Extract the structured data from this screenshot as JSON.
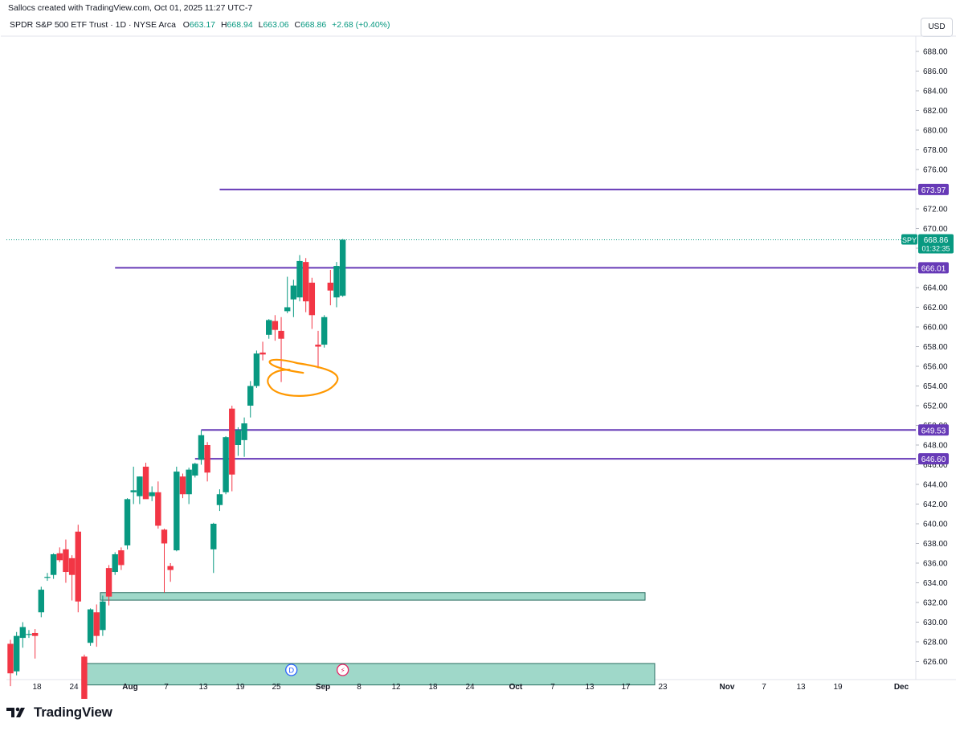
{
  "header": {
    "caption": "Sallocs created with TradingView.com, Oct 01, 2025 11:27 UTC-7",
    "symbol_title": "SPDR S&P 500 ETF Trust · 1D · NYSE Arca",
    "ohlc": [
      {
        "key": "O",
        "value": "663.17"
      },
      {
        "key": "H",
        "value": "668.94"
      },
      {
        "key": "L",
        "value": "663.06"
      },
      {
        "key": "C",
        "value": "668.86"
      }
    ],
    "change": "+2.68 (+0.40%)",
    "currency": "USD"
  },
  "footer": {
    "brand": "TradingView"
  },
  "chart_data": {
    "type": "candlestick",
    "ylim": [
      624.5,
      690.5
    ],
    "y_ticks": [
      "626.00",
      "628.00",
      "630.00",
      "632.00",
      "634.00",
      "636.00",
      "638.00",
      "640.00",
      "642.00",
      "644.00",
      "646.00",
      "648.00",
      "650.00",
      "652.00",
      "654.00",
      "656.00",
      "658.00",
      "660.00",
      "662.00",
      "664.00",
      "666.00",
      "668.00",
      "670.00",
      "672.00",
      "674.00",
      "676.00",
      "678.00",
      "680.00",
      "682.00",
      "684.00",
      "686.00",
      "688.00"
    ],
    "x_ticks": [
      "18",
      "24",
      "Aug",
      "7",
      "13",
      "19",
      "25",
      "Sep",
      "8",
      "12",
      "18",
      "24",
      "Oct",
      "7",
      "13",
      "17",
      "23",
      "Nov",
      "7",
      "13",
      "19",
      "Dec"
    ],
    "bold_x_ticks": [
      "Aug",
      "Sep",
      "Oct",
      "Nov",
      "Dec"
    ],
    "colors": {
      "up": "#089981",
      "down": "#f23645",
      "level": "#673ab7",
      "zone_fill": "#9fd8c9",
      "zone_stroke": "#2a6e62",
      "drawing": "#ff9800",
      "last_price": "#089981"
    },
    "candles": [
      {
        "date": "Jul 14",
        "o": 627.8,
        "h": 628.2,
        "l": 623.5,
        "c": 624.8
      },
      {
        "date": "Jul 15",
        "o": 625.0,
        "h": 629.0,
        "l": 624.6,
        "c": 628.6
      },
      {
        "date": "Jul 16",
        "o": 628.4,
        "h": 630.0,
        "l": 627.4,
        "c": 629.5
      },
      {
        "date": "Jul 17",
        "o": 628.8,
        "h": 629.2,
        "l": 628.4,
        "c": 628.8
      },
      {
        "date": "Jul 18",
        "o": 628.9,
        "h": 629.3,
        "l": 626.3,
        "c": 628.6
      },
      {
        "date": "Jul 21",
        "o": 631.0,
        "h": 633.6,
        "l": 630.5,
        "c": 633.3
      },
      {
        "date": "Jul 22",
        "o": 634.6,
        "h": 635.0,
        "l": 634.2,
        "c": 634.6
      },
      {
        "date": "Jul 23",
        "o": 634.8,
        "h": 637.0,
        "l": 634.4,
        "c": 636.9
      },
      {
        "date": "Jul 24",
        "o": 637.0,
        "h": 637.6,
        "l": 636.1,
        "c": 636.3
      },
      {
        "date": "Jul 25",
        "o": 637.4,
        "h": 638.4,
        "l": 634.0,
        "c": 635.1
      },
      {
        "date": "Jul 28",
        "o": 636.5,
        "h": 636.8,
        "l": 632.2,
        "c": 634.8
      },
      {
        "date": "Jul 29",
        "o": 639.2,
        "h": 639.9,
        "l": 631.0,
        "c": 632.1
      },
      {
        "date": "Aug 1",
        "o": 626.5,
        "h": 626.7,
        "l": 621.5,
        "c": 621.8
      },
      {
        "date": "Aug 4",
        "o": 627.9,
        "h": 631.4,
        "l": 627.6,
        "c": 631.3
      },
      {
        "date": "Aug 5",
        "o": 631.0,
        "h": 631.8,
        "l": 627.5,
        "c": 628.6
      },
      {
        "date": "Aug 6",
        "o": 629.2,
        "h": 632.7,
        "l": 628.6,
        "c": 632.1
      },
      {
        "date": "Aug 7",
        "o": 635.5,
        "h": 635.8,
        "l": 631.7,
        "c": 632.6
      },
      {
        "date": "Aug 8",
        "o": 635.1,
        "h": 637.1,
        "l": 634.8,
        "c": 636.9
      },
      {
        "date": "Aug 11",
        "o": 637.3,
        "h": 637.6,
        "l": 635.3,
        "c": 635.8
      },
      {
        "date": "Aug 12",
        "o": 637.8,
        "h": 642.6,
        "l": 637.4,
        "c": 642.5
      },
      {
        "date": "Aug 13",
        "o": 643.2,
        "h": 645.8,
        "l": 642.0,
        "c": 643.4
      },
      {
        "date": "Aug 14",
        "o": 642.8,
        "h": 644.8,
        "l": 642.0,
        "c": 644.8
      },
      {
        "date": "Aug 15",
        "o": 645.8,
        "h": 646.2,
        "l": 642.7,
        "c": 642.5
      },
      {
        "date": "Aug 18",
        "o": 642.8,
        "h": 643.8,
        "l": 642.3,
        "c": 643.2
      },
      {
        "date": "Aug 19",
        "o": 643.2,
        "h": 644.3,
        "l": 639.5,
        "c": 639.8
      },
      {
        "date": "Aug 20",
        "o": 639.4,
        "h": 639.5,
        "l": 633.0,
        "c": 638.0
      },
      {
        "date": "Aug 21",
        "o": 635.7,
        "h": 636.0,
        "l": 634.1,
        "c": 635.3
      },
      {
        "date": "Aug 22",
        "o": 637.3,
        "h": 645.8,
        "l": 637.2,
        "c": 645.3
      },
      {
        "date": "Aug 25",
        "o": 644.8,
        "h": 645.1,
        "l": 642.6,
        "c": 643.0
      },
      {
        "date": "Aug 26",
        "o": 643.0,
        "h": 645.7,
        "l": 642.0,
        "c": 645.5
      },
      {
        "date": "Aug 27",
        "o": 644.9,
        "h": 646.2,
        "l": 644.7,
        "c": 646.1
      },
      {
        "date": "Aug 28",
        "o": 646.5,
        "h": 649.5,
        "l": 646.0,
        "c": 649.0
      },
      {
        "date": "Aug 29",
        "o": 648.0,
        "h": 648.3,
        "l": 644.3,
        "c": 645.2
      },
      {
        "date": "Sep 2",
        "o": 637.4,
        "h": 640.1,
        "l": 635.0,
        "c": 640.0
      },
      {
        "date": "Sep 3",
        "o": 641.9,
        "h": 643.5,
        "l": 641.3,
        "c": 643.0
      },
      {
        "date": "Sep 4",
        "o": 643.2,
        "h": 648.9,
        "l": 643.0,
        "c": 648.8
      },
      {
        "date": "Sep 5",
        "o": 651.7,
        "h": 652.0,
        "l": 643.3,
        "c": 645.0
      },
      {
        "date": "Sep 8",
        "o": 648.0,
        "h": 649.8,
        "l": 646.9,
        "c": 649.5
      },
      {
        "date": "Sep 9",
        "o": 648.5,
        "h": 650.8,
        "l": 646.8,
        "c": 650.2
      },
      {
        "date": "Sep 10",
        "o": 652.0,
        "h": 654.5,
        "l": 650.8,
        "c": 654.0
      },
      {
        "date": "Sep 11",
        "o": 654.0,
        "h": 657.6,
        "l": 653.8,
        "c": 657.3
      },
      {
        "date": "Sep 12",
        "o": 657.4,
        "h": 658.5,
        "l": 656.6,
        "c": 657.2
      },
      {
        "date": "Sep 15",
        "o": 659.2,
        "h": 660.8,
        "l": 658.8,
        "c": 660.7
      },
      {
        "date": "Sep 16",
        "o": 660.6,
        "h": 661.2,
        "l": 658.6,
        "c": 659.7
      },
      {
        "date": "Sep 17",
        "o": 659.6,
        "h": 661.0,
        "l": 654.4,
        "c": 658.8
      },
      {
        "date": "Sep 18",
        "o": 661.6,
        "h": 665.1,
        "l": 661.4,
        "c": 662.0
      },
      {
        "date": "Sep 19",
        "o": 662.8,
        "h": 664.8,
        "l": 661.0,
        "c": 664.2
      },
      {
        "date": "Sep 22",
        "o": 663.0,
        "h": 667.3,
        "l": 662.6,
        "c": 666.7
      },
      {
        "date": "Sep 23",
        "o": 666.6,
        "h": 667.0,
        "l": 661.5,
        "c": 662.6
      },
      {
        "date": "Sep 24",
        "o": 664.5,
        "h": 665.0,
        "l": 659.8,
        "c": 661.2
      },
      {
        "date": "Sep 25",
        "o": 658.2,
        "h": 659.6,
        "l": 655.8,
        "c": 658.0
      },
      {
        "date": "Sep 26",
        "o": 658.2,
        "h": 661.2,
        "l": 657.9,
        "c": 661.0
      },
      {
        "date": "Sep 29",
        "o": 664.5,
        "h": 665.8,
        "l": 662.2,
        "c": 663.7
      },
      {
        "date": "Sep 30",
        "o": 663.0,
        "h": 666.6,
        "l": 662.0,
        "c": 666.2
      },
      {
        "date": "Oct 1",
        "o": 663.17,
        "h": 668.94,
        "l": 663.06,
        "c": 668.86
      }
    ],
    "horizontal_levels": [
      {
        "price": 673.97,
        "label": "673.97",
        "from_date": "Sep 3"
      },
      {
        "price": 666.01,
        "label": "666.01",
        "from_date": "Aug 8"
      },
      {
        "price": 649.53,
        "label": "649.53",
        "from_date": "Aug 28"
      },
      {
        "price": 646.6,
        "label": "646.60",
        "from_date": "Aug 27"
      }
    ],
    "zones": [
      {
        "top": 633.0,
        "bottom": 632.4,
        "from_date": "Aug 6",
        "to_date": "Oct 17"
      },
      {
        "top": 625.8,
        "bottom": 624.6,
        "from_date": "Aug 1",
        "to_date": "Oct 20"
      }
    ],
    "event_markers": [
      {
        "letter": "D",
        "date": "Sep 18",
        "kind": "dividend"
      },
      {
        "letter": "⚡",
        "date": "Oct 1",
        "kind": "split-earnings"
      }
    ],
    "last_price": {
      "symbol": "SPY",
      "price": "668.86",
      "countdown": "01:32:35",
      "value": 668.86
    },
    "annotation": {
      "type": "freehand-circle",
      "around_date": "Sep 19",
      "price_center": 655.5
    }
  }
}
